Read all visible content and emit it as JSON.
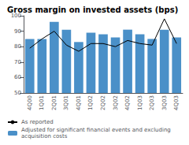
{
  "chart_data": {
    "type": "bar",
    "title": "Gross margin on invested assets (bps)",
    "categories": [
      "4Q00",
      "1Q01",
      "2Q01",
      "3Q01",
      "4Q01",
      "1Q02",
      "2Q02",
      "3Q02",
      "4Q02",
      "1Q03",
      "2Q03",
      "3Q03",
      "4Q03"
    ],
    "series": [
      {
        "name": "As reported",
        "type": "line",
        "color": "#000000",
        "values": [
          79,
          85,
          90,
          81,
          77,
          82,
          82,
          80,
          84,
          82,
          81,
          98,
          82
        ]
      },
      {
        "name": "Adjusted for significant financial events and excluding acquisition costs",
        "type": "bar",
        "color": "#4a90c8",
        "values": [
          85,
          85,
          96,
          91,
          83,
          89,
          88,
          86,
          91,
          88,
          85,
          91,
          86
        ]
      }
    ],
    "ylim": [
      50,
      100
    ],
    "yticks": [
      50,
      60,
      70,
      80,
      90,
      100
    ],
    "grid": false,
    "legend": "bottom"
  }
}
